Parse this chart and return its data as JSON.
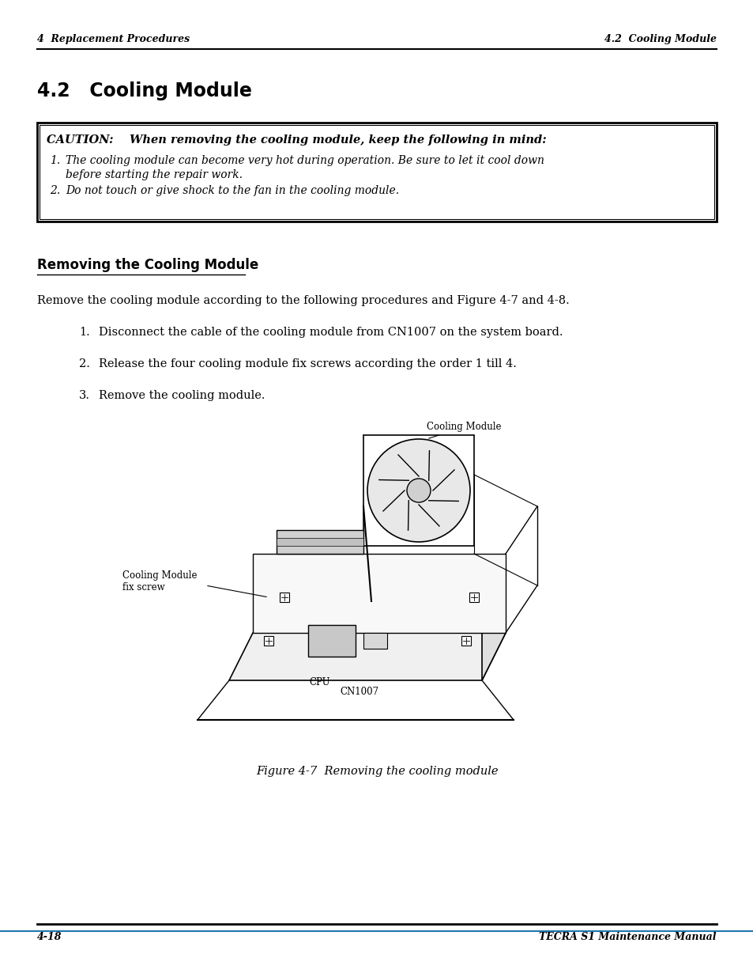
{
  "bg_color": "#ffffff",
  "header_left": "4  Replacement Procedures",
  "header_right": "4.2  Cooling Module",
  "footer_left": "4-18",
  "footer_right": "TECRA S1 Maintenance Manual",
  "section_title": "4.2   Cooling Module",
  "caution_header": "CAUTION:    When removing the cooling module, keep the following in mind:",
  "caution_items": [
    "The cooling module can become very hot during operation. Be sure to let it cool down before starting the repair work.",
    "Do not touch or give shock to the fan in the cooling module."
  ],
  "subsection_title": "Removing the Cooling Module",
  "intro_text": "Remove the cooling module according to the following procedures and Figure 4-7 and 4-8.",
  "steps": [
    "Disconnect the cable of the cooling module from CN1007 on the system board.",
    "Release the four cooling module fix screws according the order 1 till 4.",
    "Remove the cooling module."
  ],
  "figure_caption": "Figure 4-7  Removing the cooling module",
  "diagram_labels": {
    "cooling_module": "Cooling Module",
    "fix_screw": "Cooling Module\nfix screw",
    "cpu": "CPU",
    "cn1007": "CN1007"
  }
}
